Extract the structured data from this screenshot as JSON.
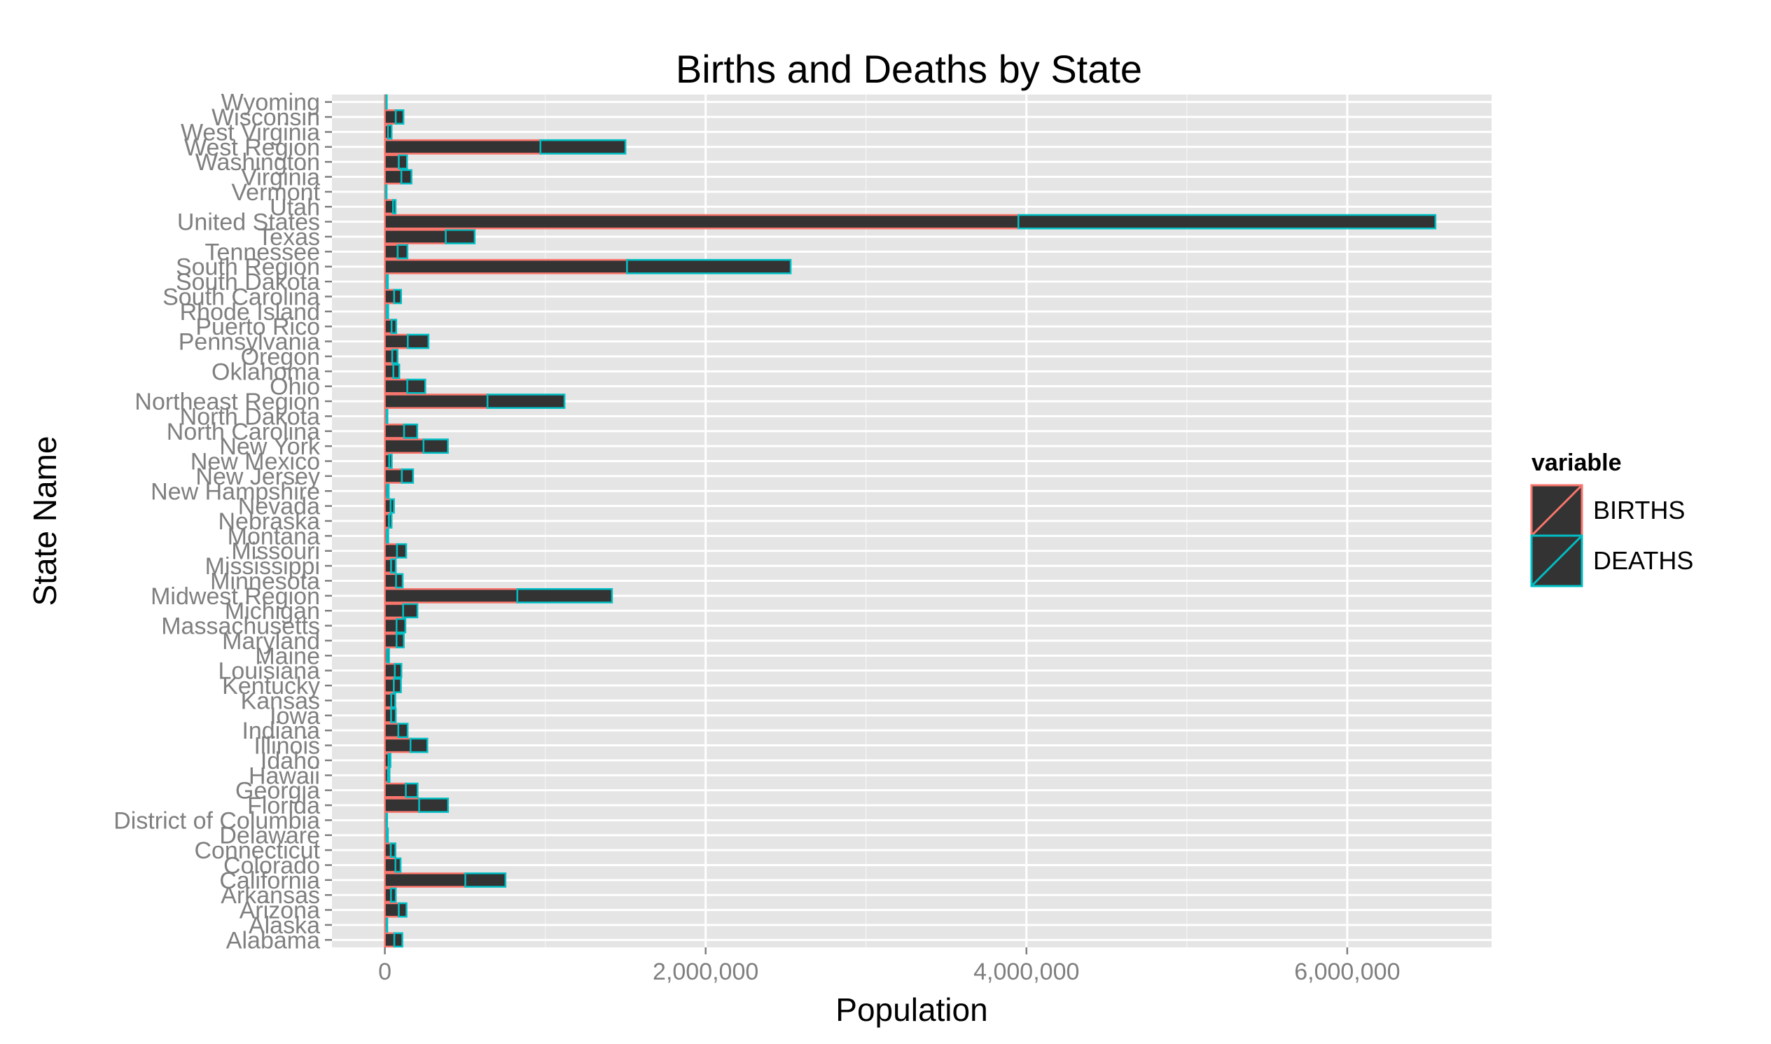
{
  "chart_data": {
    "type": "bar",
    "orientation": "horizontal",
    "stacked": true,
    "title": "Births and Deaths by State",
    "xlabel": "Population",
    "ylabel": "State Name",
    "xlim": [
      -330000,
      6900000
    ],
    "x_ticks": [
      0,
      2000000,
      4000000,
      6000000
    ],
    "x_tick_labels": [
      "0",
      "2,000,000",
      "4,000,000",
      "6,000,000"
    ],
    "grid": true,
    "legend": {
      "title": "variable",
      "position": "right"
    },
    "bar_fill": "#333333",
    "panel_background": "#e5e5e5",
    "categories": [
      "Alabama",
      "Alaska",
      "Arizona",
      "Arkansas",
      "California",
      "Colorado",
      "Connecticut",
      "Delaware",
      "District of Columbia",
      "Florida",
      "Georgia",
      "Hawaii",
      "Idaho",
      "Illinois",
      "Indiana",
      "Iowa",
      "Kansas",
      "Kentucky",
      "Louisiana",
      "Maine",
      "Maryland",
      "Massachusetts",
      "Michigan",
      "Midwest Region",
      "Minnesota",
      "Mississippi",
      "Missouri",
      "Montana",
      "Nebraska",
      "Nevada",
      "New Hampshire",
      "New Jersey",
      "New Mexico",
      "New York",
      "North Carolina",
      "North Dakota",
      "Northeast Region",
      "Ohio",
      "Oklahoma",
      "Oregon",
      "Pennsylvania",
      "Puerto Rico",
      "Rhode Island",
      "South Carolina",
      "South Dakota",
      "South Region",
      "Tennessee",
      "Texas",
      "United States",
      "Utah",
      "Vermont",
      "Virginia",
      "Washington",
      "West Region",
      "West Virginia",
      "Wisconsin",
      "Wyoming"
    ],
    "series": [
      {
        "name": "BIRTHS",
        "color": "#f8766d",
        "values": [
          59000,
          11000,
          87000,
          38000,
          502000,
          66000,
          37000,
          11000,
          9000,
          214000,
          131000,
          19000,
          23000,
          160000,
          84000,
          39000,
          40000,
          56000,
          62000,
          13000,
          73000,
          73000,
          114000,
          826000,
          70000,
          39000,
          76000,
          12000,
          26000,
          36000,
          13000,
          106000,
          27000,
          241000,
          120000,
          10000,
          640000,
          140000,
          53000,
          46000,
          143000,
          42000,
          11000,
          58000,
          12000,
          1510000,
          80000,
          380000,
          3950000,
          51000,
          6000,
          103000,
          87000,
          970000,
          20000,
          68000,
          8000
        ]
      },
      {
        "name": "DEATHS",
        "color": "#00bfc4",
        "values": [
          50000,
          4000,
          48000,
          30000,
          250000,
          32000,
          29000,
          8000,
          5000,
          180000,
          73000,
          10000,
          12000,
          105000,
          58000,
          29000,
          25000,
          44000,
          41000,
          13000,
          45000,
          55000,
          89000,
          590000,
          41000,
          29000,
          57000,
          9000,
          16000,
          21000,
          11000,
          70000,
          16000,
          152000,
          82000,
          6000,
          480000,
          112000,
          37000,
          33000,
          129000,
          29000,
          10000,
          43000,
          7000,
          1020000,
          61000,
          180000,
          2600000,
          16000,
          5000,
          63000,
          51000,
          530000,
          22000,
          48000,
          4000
        ]
      }
    ]
  }
}
